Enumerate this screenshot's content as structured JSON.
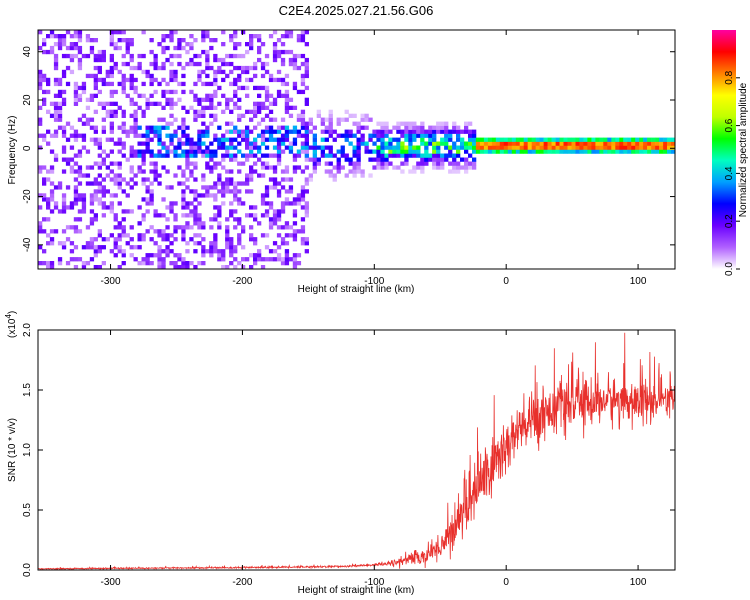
{
  "title": "C2E4.2025.027.21.56.G06",
  "chart_data": [
    {
      "type": "heatmap",
      "xlabel": "Height of straight line (km)",
      "ylabel": "Frequency (Hz)",
      "xlim": [
        -355,
        128
      ],
      "ylim": [
        -50,
        49
      ],
      "xticks": [
        -300,
        -200,
        -100,
        0,
        100
      ],
      "xtick_labels": [
        "-300",
        "-200",
        "-100",
        "0",
        "100"
      ],
      "yticks": [
        -40,
        -20,
        0,
        20,
        40
      ],
      "ytick_labels": [
        "-40",
        "-20",
        "0",
        "20",
        "40"
      ],
      "colorbar": {
        "label": "Normalized spectral amplitude",
        "range": [
          0,
          1
        ],
        "ticks": [
          0.0,
          0.2,
          0.4,
          0.6,
          0.8
        ],
        "tick_labels": [
          "0.0",
          "0.2",
          "0.4",
          "0.6",
          "0.8"
        ],
        "colormap": [
          "#ffffff",
          "#b060ff",
          "#6a00ff",
          "#0000ff",
          "#00a0ff",
          "#00ffc0",
          "#00ff00",
          "#c0ff00",
          "#ffff00",
          "#ff8000",
          "#ff0000",
          "#ff00a0"
        ]
      },
      "description_regions": [
        {
          "x_range": [
            -355,
            -285
          ],
          "freq_range": [
            -50,
            49
          ],
          "level": 0.12
        },
        {
          "x_range": [
            -285,
            -150
          ],
          "freq_range": [
            -50,
            49
          ],
          "level": 0.08
        },
        {
          "x_range": [
            -150,
            -100
          ],
          "freq_range": [
            -25,
            20
          ],
          "level": 0.2
        },
        {
          "x_range": [
            -100,
            -25
          ],
          "freq_range": [
            -15,
            12
          ],
          "level": 0.35
        },
        {
          "x_range": [
            -25,
            128
          ],
          "freq_range": [
            -3,
            3
          ],
          "level": 0.9
        }
      ]
    },
    {
      "type": "line",
      "xlabel": "Height of straight line (km)",
      "ylabel": "SNR (10 * v/v)",
      "scale_label": "(x10",
      "scale_exponent": "4",
      "scale_suffix": ")",
      "xlim": [
        -355,
        128
      ],
      "ylim": [
        0,
        2.0
      ],
      "xticks": [
        -300,
        -200,
        -100,
        0,
        100
      ],
      "xtick_labels": [
        "-300",
        "-200",
        "-100",
        "0",
        "100"
      ],
      "yticks": [
        0.0,
        0.5,
        1.0,
        1.5,
        2.0
      ],
      "ytick_labels": [
        "0.0",
        "0.5",
        "1.0",
        "1.5",
        "2.0"
      ],
      "color": "#e8302c",
      "trend": {
        "x": [
          -355,
          -200,
          -120,
          -90,
          -60,
          -45,
          -35,
          -25,
          -15,
          -5,
          5,
          15,
          25,
          40,
          60,
          80,
          100,
          128
        ],
        "y": [
          0.01,
          0.02,
          0.03,
          0.05,
          0.12,
          0.25,
          0.45,
          0.65,
          0.8,
          0.95,
          1.1,
          1.2,
          1.3,
          1.37,
          1.4,
          1.42,
          1.4,
          1.4
        ]
      },
      "noise_amplitude": {
        "x": [
          -355,
          -100,
          -60,
          -40,
          -20,
          0,
          40,
          128
        ],
        "y": [
          0.005,
          0.01,
          0.08,
          0.2,
          0.35,
          0.3,
          0.25,
          0.2
        ]
      }
    }
  ]
}
